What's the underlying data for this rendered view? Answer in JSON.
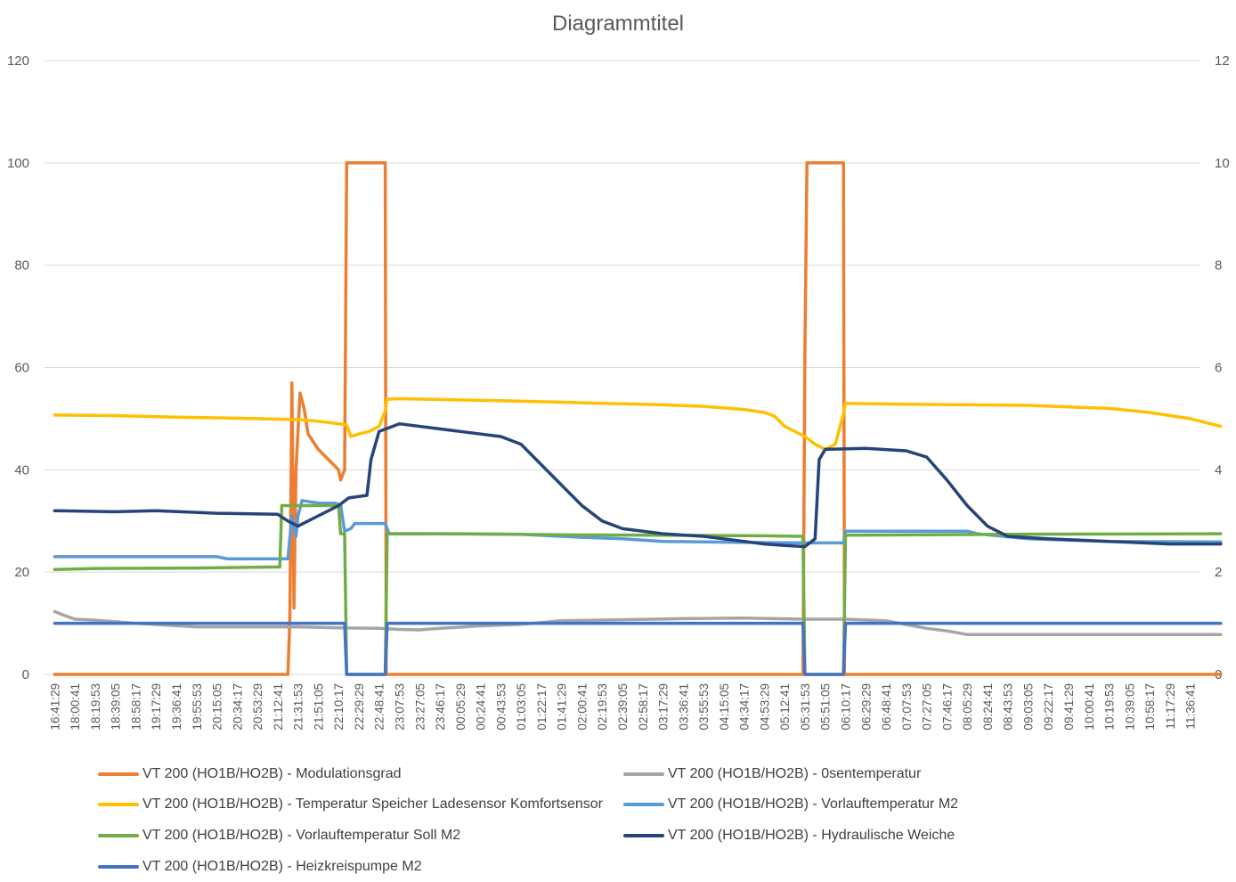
{
  "chart_data": {
    "type": "line",
    "title": "Diagrammtitel",
    "y_left": {
      "min": 0,
      "max": 120,
      "ticks": [
        0,
        20,
        40,
        60,
        80,
        100,
        120
      ]
    },
    "y_right": {
      "min": 0,
      "max": 12,
      "ticks": [
        0,
        2,
        4,
        6,
        8,
        10,
        12
      ]
    },
    "grid": "horizontal",
    "legend_position": "bottom",
    "x_tick_labels": [
      "16:41:29",
      "18:00:41",
      "18:19:53",
      "18:39:05",
      "18:58:17",
      "19:17:29",
      "19:36:41",
      "19:55:53",
      "20:15:05",
      "20:34:17",
      "20:53:29",
      "21:12:41",
      "21:31:53",
      "21:51:05",
      "22:10:17",
      "22:29:29",
      "22:48:41",
      "23:07:53",
      "23:27:05",
      "23:46:17",
      "00:05:29",
      "00:24:41",
      "00:43:53",
      "01:03:05",
      "01:22:17",
      "01:41:29",
      "02:00:41",
      "02:19:53",
      "02:39:05",
      "02:58:17",
      "03:17:29",
      "03:36:41",
      "03:55:53",
      "04:15:05",
      "04:34:17",
      "04:53:29",
      "05:12:41",
      "05:31:53",
      "05:51:05",
      "06:10:17",
      "06:29:29",
      "06:48:41",
      "07:07:53",
      "07:27:05",
      "07:46:17",
      "08:05:29",
      "08:24:41",
      "08:43:53",
      "09:03:05",
      "09:22:17",
      "09:41:29",
      "10:00:41",
      "10:19:53",
      "10:39:05",
      "10:58:17",
      "11:17:29",
      "11:36:41"
    ],
    "series": [
      {
        "name": "VT 200 (HO1B/HO2B) - Modulationsgrad",
        "color": "#ED7D31",
        "axis": "left",
        "points": [
          [
            0,
            0
          ],
          [
            11.5,
            0
          ],
          [
            11.6,
            11
          ],
          [
            11.7,
            57
          ],
          [
            11.8,
            13
          ],
          [
            11.9,
            40
          ],
          [
            12.1,
            55
          ],
          [
            12.3,
            52
          ],
          [
            12.5,
            47
          ],
          [
            13.0,
            44
          ],
          [
            13.5,
            42
          ],
          [
            14.0,
            40
          ],
          [
            14.1,
            38
          ],
          [
            14.3,
            40
          ],
          [
            14.4,
            100
          ],
          [
            16.3,
            100
          ],
          [
            16.35,
            0
          ],
          [
            36.9,
            0
          ],
          [
            37.0,
            63
          ],
          [
            37.1,
            100
          ],
          [
            38.9,
            100
          ],
          [
            38.95,
            0
          ],
          [
            57.5,
            0
          ]
        ]
      },
      {
        "name": "VT 200 (HO1B/HO2B) - 0sentemperatur",
        "color": "#A5A5A5",
        "axis": "left",
        "points": [
          [
            0,
            12.3
          ],
          [
            0.5,
            11.5
          ],
          [
            1,
            10.8
          ],
          [
            2,
            10.6
          ],
          [
            4,
            10.0
          ],
          [
            7,
            9.3
          ],
          [
            11,
            9.3
          ],
          [
            12,
            9.3
          ],
          [
            14,
            9.1
          ],
          [
            16,
            9.0
          ],
          [
            17,
            8.8
          ],
          [
            18,
            8.7
          ],
          [
            19,
            9.0
          ],
          [
            21,
            9.5
          ],
          [
            23,
            9.8
          ],
          [
            25,
            10.5
          ],
          [
            28,
            10.7
          ],
          [
            31,
            10.9
          ],
          [
            34,
            11.0
          ],
          [
            37,
            10.8
          ],
          [
            39,
            10.8
          ],
          [
            41,
            10.5
          ],
          [
            43,
            9.0
          ],
          [
            44,
            8.5
          ],
          [
            45,
            7.8
          ],
          [
            57.5,
            7.8
          ]
        ]
      },
      {
        "name": "VT 200 (HO1B/HO2B) - Temperatur Speicher Ladesensor Komfortsensor",
        "color": "#FFC000",
        "axis": "left",
        "points": [
          [
            0,
            50.7
          ],
          [
            3,
            50.6
          ],
          [
            6,
            50.3
          ],
          [
            10,
            50.0
          ],
          [
            12,
            49.8
          ],
          [
            13,
            49.5
          ],
          [
            14,
            49.0
          ],
          [
            14.4,
            48.8
          ],
          [
            14.6,
            46.5
          ],
          [
            15,
            47.0
          ],
          [
            15.5,
            47.5
          ],
          [
            16,
            48.5
          ],
          [
            16.3,
            51.5
          ],
          [
            16.4,
            53.8
          ],
          [
            17,
            53.9
          ],
          [
            22,
            53.5
          ],
          [
            26,
            53.1
          ],
          [
            30,
            52.7
          ],
          [
            32,
            52.4
          ],
          [
            34,
            51.8
          ],
          [
            35,
            51.2
          ],
          [
            35.5,
            50.5
          ],
          [
            36,
            48.5
          ],
          [
            37,
            46.5
          ],
          [
            37.5,
            45.0
          ],
          [
            38,
            44.0
          ],
          [
            38.5,
            45.0
          ],
          [
            38.9,
            51.0
          ],
          [
            39,
            53.0
          ],
          [
            42,
            52.8
          ],
          [
            48,
            52.6
          ],
          [
            50,
            52.3
          ],
          [
            52,
            52.0
          ],
          [
            54,
            51.2
          ],
          [
            56,
            50.0
          ],
          [
            57,
            49.0
          ],
          [
            57.5,
            48.5
          ]
        ]
      },
      {
        "name": "VT 200 (HO1B/HO2B) - Vorlauftemperatur M2",
        "color": "#5B9BD5",
        "axis": "left",
        "points": [
          [
            0,
            23
          ],
          [
            8,
            23
          ],
          [
            8.5,
            22.6
          ],
          [
            11,
            22.6
          ],
          [
            11.5,
            22.6
          ],
          [
            11.7,
            31
          ],
          [
            11.9,
            27
          ],
          [
            12,
            31
          ],
          [
            12.2,
            34
          ],
          [
            13,
            33.5
          ],
          [
            13.8,
            33.5
          ],
          [
            14.1,
            33.2
          ],
          [
            14.3,
            28
          ],
          [
            14.6,
            28.5
          ],
          [
            14.8,
            29.5
          ],
          [
            16.3,
            29.5
          ],
          [
            16.5,
            27.5
          ],
          [
            18,
            27.5
          ],
          [
            23,
            27.4
          ],
          [
            26,
            26.8
          ],
          [
            28,
            26.5
          ],
          [
            30,
            26.0
          ],
          [
            34,
            25.8
          ],
          [
            37,
            25.7
          ],
          [
            38.9,
            25.7
          ],
          [
            39,
            28.0
          ],
          [
            45,
            28.0
          ],
          [
            45.5,
            27.5
          ],
          [
            48,
            26.5
          ],
          [
            52,
            26.0
          ],
          [
            57.5,
            25.9
          ]
        ]
      },
      {
        "name": "VT 200 (HO1B/HO2B) - Vorlauftemperatur Soll M2",
        "color": "#70AD47",
        "axis": "left",
        "points": [
          [
            0,
            20.5
          ],
          [
            2,
            20.7
          ],
          [
            7,
            20.8
          ],
          [
            11.1,
            21
          ],
          [
            11.2,
            33
          ],
          [
            14,
            33
          ],
          [
            14.1,
            27.5
          ],
          [
            14.3,
            27.5
          ],
          [
            14.4,
            0
          ],
          [
            16.3,
            0
          ],
          [
            16.4,
            27.5
          ],
          [
            20,
            27.5
          ],
          [
            25,
            27.3
          ],
          [
            30,
            27.2
          ],
          [
            35,
            27.1
          ],
          [
            36.9,
            27.0
          ],
          [
            37.0,
            0
          ],
          [
            38.9,
            0
          ],
          [
            39.0,
            27.2
          ],
          [
            43,
            27.3
          ],
          [
            47,
            27.4
          ],
          [
            57.5,
            27.5
          ]
        ]
      },
      {
        "name": "VT 200 (HO1B/HO2B) - Hydraulische Weiche",
        "color": "#264478",
        "axis": "left",
        "points": [
          [
            0,
            32
          ],
          [
            3,
            31.8
          ],
          [
            5,
            32
          ],
          [
            8,
            31.5
          ],
          [
            11,
            31.3
          ],
          [
            11.5,
            30
          ],
          [
            12,
            29
          ],
          [
            12.5,
            30
          ],
          [
            13,
            31
          ],
          [
            13.5,
            32
          ],
          [
            14,
            33
          ],
          [
            14.5,
            34.5
          ],
          [
            15.4,
            35
          ],
          [
            15.6,
            42
          ],
          [
            16,
            47.5
          ],
          [
            17,
            49
          ],
          [
            20,
            47.5
          ],
          [
            22,
            46.5
          ],
          [
            23,
            45
          ],
          [
            24,
            41
          ],
          [
            25,
            37
          ],
          [
            26,
            33
          ],
          [
            27,
            30
          ],
          [
            28,
            28.5
          ],
          [
            30,
            27.5
          ],
          [
            32,
            27
          ],
          [
            34,
            26
          ],
          [
            35,
            25.5
          ],
          [
            36,
            25.2
          ],
          [
            37,
            25
          ],
          [
            37.5,
            26.5
          ],
          [
            37.7,
            42
          ],
          [
            38,
            44
          ],
          [
            40,
            44.2
          ],
          [
            42,
            43.7
          ],
          [
            43,
            42.5
          ],
          [
            44,
            38
          ],
          [
            45,
            33
          ],
          [
            46,
            29
          ],
          [
            47,
            27
          ],
          [
            49,
            26.5
          ],
          [
            52,
            26
          ],
          [
            55,
            25.5
          ],
          [
            57.5,
            25.5
          ]
        ]
      },
      {
        "name": "VT 200 (HO1B/HO2B) - Heizkreispumpe M2",
        "color": "#4472C4",
        "axis": "right",
        "points": [
          [
            0,
            1
          ],
          [
            14.3,
            1
          ],
          [
            14.4,
            0
          ],
          [
            16.3,
            0
          ],
          [
            16.4,
            1
          ],
          [
            36.9,
            1
          ],
          [
            37.0,
            0
          ],
          [
            38.9,
            0
          ],
          [
            39.0,
            1
          ],
          [
            57.5,
            1
          ]
        ]
      }
    ]
  }
}
